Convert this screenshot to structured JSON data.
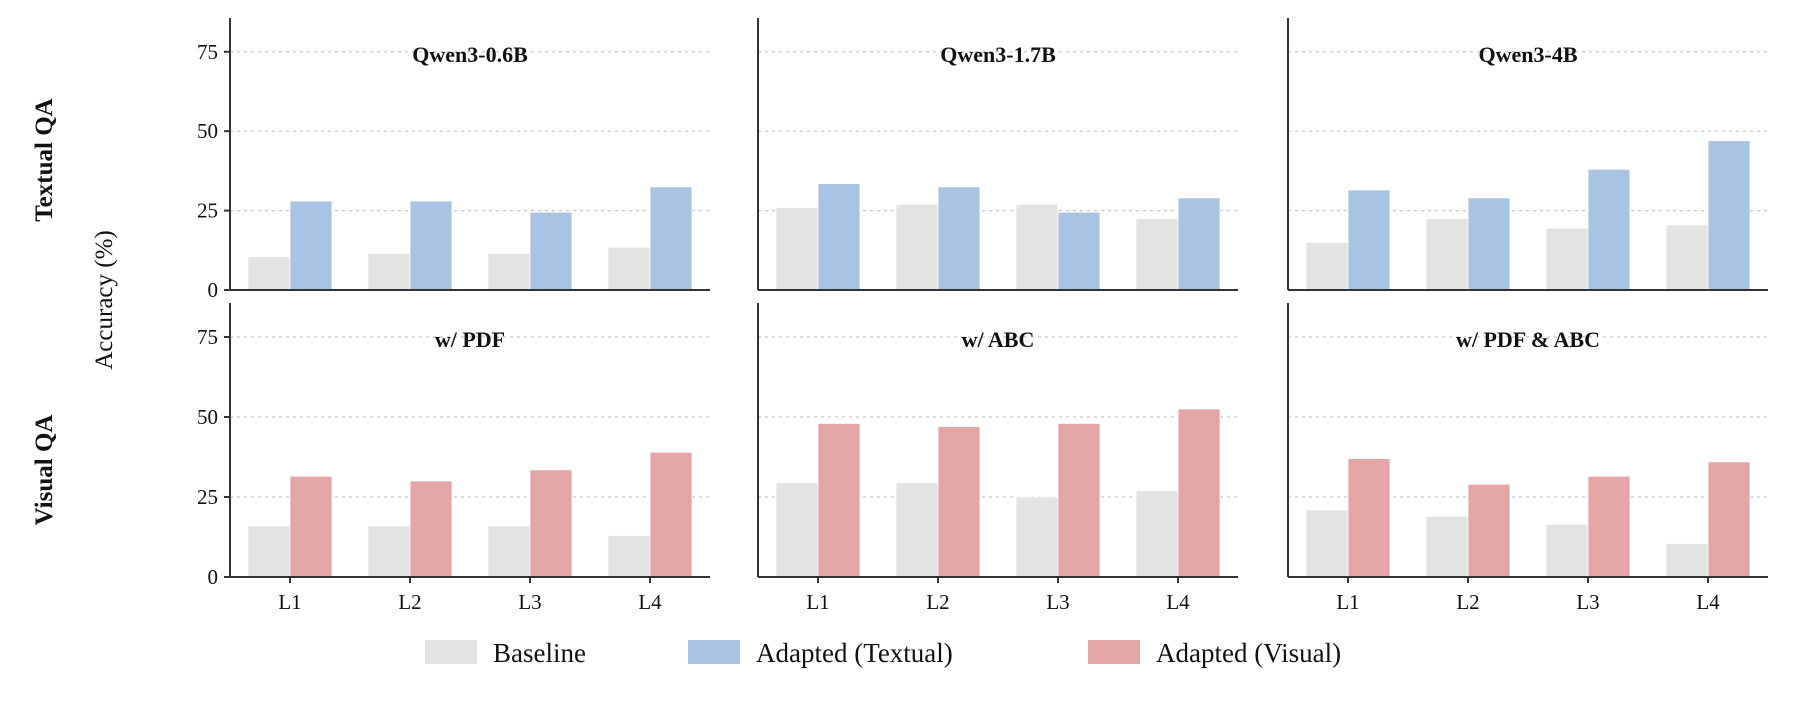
{
  "chart_data": {
    "type": "bar",
    "categories": [
      "L1",
      "L2",
      "L3",
      "L4"
    ],
    "ylabel": "Accuracy (%)",
    "yticks": [
      0,
      25,
      50,
      75
    ],
    "ylim": [
      0,
      85
    ],
    "grid": true,
    "row_labels": [
      "Textual QA",
      "Visual QA"
    ],
    "legend": {
      "placement": "bottom-center",
      "entries": [
        {
          "name": "Baseline",
          "color": "#e3e3e3"
        },
        {
          "name": "Adapted (Textual)",
          "color": "#a9c4e2"
        },
        {
          "name": "Adapted (Visual)",
          "color": "#e3a5a5"
        }
      ]
    },
    "panels": [
      {
        "row": 0,
        "col": 0,
        "title": "Qwen3-0.6B",
        "series": [
          {
            "name": "Baseline",
            "values": [
              10.5,
              11.5,
              11.5,
              13.5
            ]
          },
          {
            "name": "Adapted (Textual)",
            "values": [
              28,
              28,
              24.5,
              32.5
            ]
          }
        ]
      },
      {
        "row": 0,
        "col": 1,
        "title": "Qwen3-1.7B",
        "series": [
          {
            "name": "Baseline",
            "values": [
              26,
              27,
              27,
              22.5
            ]
          },
          {
            "name": "Adapted (Textual)",
            "values": [
              33.5,
              32.5,
              24.5,
              29
            ]
          }
        ]
      },
      {
        "row": 0,
        "col": 2,
        "title": "Qwen3-4B",
        "series": [
          {
            "name": "Baseline",
            "values": [
              15,
              22.5,
              19.5,
              20.5
            ]
          },
          {
            "name": "Adapted (Textual)",
            "values": [
              31.5,
              29,
              38,
              47
            ]
          }
        ]
      },
      {
        "row": 1,
        "col": 0,
        "title": "w/ PDF",
        "series": [
          {
            "name": "Baseline",
            "values": [
              16,
              16,
              16,
              13
            ]
          },
          {
            "name": "Adapted (Visual)",
            "values": [
              31.5,
              30,
              33.5,
              39
            ]
          }
        ]
      },
      {
        "row": 1,
        "col": 1,
        "title": "w/ ABC",
        "series": [
          {
            "name": "Baseline",
            "values": [
              29.5,
              29.5,
              25,
              27
            ]
          },
          {
            "name": "Adapted (Visual)",
            "values": [
              48,
              47,
              48,
              52.5
            ]
          }
        ]
      },
      {
        "row": 1,
        "col": 2,
        "title": "w/ PDF & ABC",
        "series": [
          {
            "name": "Baseline",
            "values": [
              21,
              19,
              16.5,
              10.5
            ]
          },
          {
            "name": "Adapted (Visual)",
            "values": [
              37,
              29,
              31.5,
              36
            ]
          }
        ]
      }
    ]
  }
}
